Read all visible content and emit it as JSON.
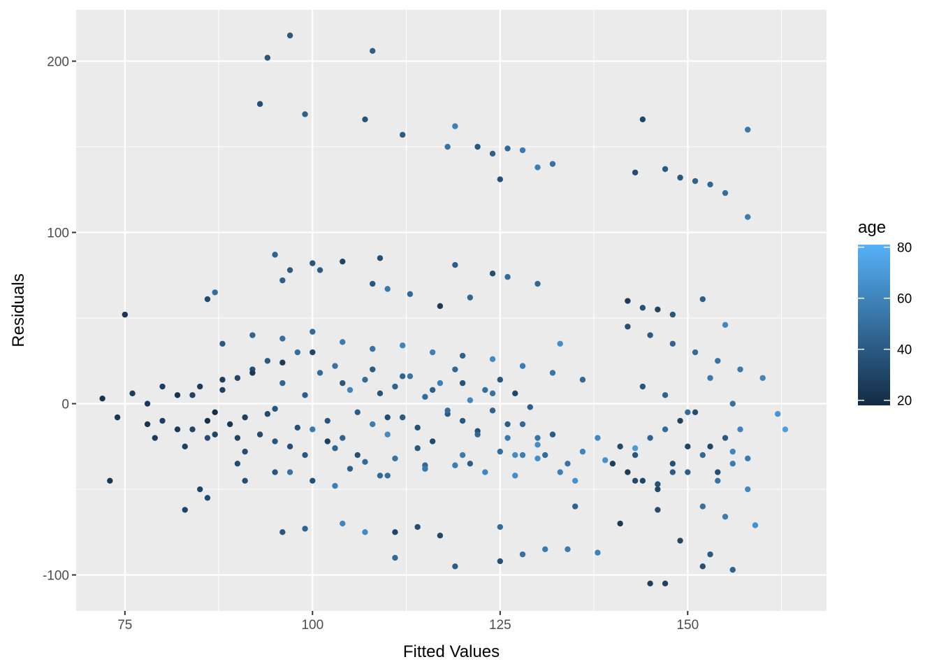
{
  "chart_data": {
    "type": "scatter",
    "title": "",
    "xlabel": "Fitted Values",
    "ylabel": "Residuals",
    "xlim": [
      68.5,
      168.5
    ],
    "ylim": [
      -121,
      230
    ],
    "x_ticks": [
      75,
      100,
      125,
      150
    ],
    "y_ticks": [
      -100,
      0,
      100,
      200
    ],
    "x_tick_labels": [
      "75",
      "100",
      "125",
      "150"
    ],
    "y_tick_labels": [
      "-100",
      "0",
      "100",
      "200"
    ],
    "grid": true,
    "panel_background": "#EBEBEB",
    "legend": {
      "title": "age",
      "placement": "right",
      "range": [
        18,
        81
      ],
      "ticks": [
        20,
        40,
        60,
        80
      ],
      "tick_labels": [
        "20",
        "40",
        "60",
        "80"
      ],
      "color_low": "#132B43",
      "color_high": "#56B1F7"
    },
    "series": [
      {
        "name": "",
        "x": [
          97,
          94,
          108,
          93,
          99,
          107,
          119,
          112,
          118,
          122,
          124,
          126,
          128,
          130,
          132,
          125,
          144,
          143,
          147,
          149,
          151,
          153,
          155,
          158,
          158,
          95,
          97,
          100,
          104,
          109,
          119,
          124,
          126,
          130,
          142,
          144,
          146,
          148,
          152,
          155,
          75,
          86,
          87,
          96,
          101,
          108,
          110,
          113,
          117,
          121,
          133,
          138,
          139,
          143,
          146,
          150,
          154,
          156,
          158,
          162,
          163,
          158,
          73,
          83,
          86,
          96,
          99,
          104,
          107,
          111,
          114,
          119,
          125,
          128,
          131,
          134,
          138,
          141,
          147,
          149,
          152,
          153,
          156,
          159,
          111,
          117,
          125,
          135,
          145,
          146,
          152,
          155,
          143,
          148,
          78,
          80,
          82,
          84,
          85,
          86,
          87,
          88,
          89,
          90,
          91,
          92,
          93,
          94,
          95,
          96,
          97,
          98,
          99,
          100,
          101,
          102,
          103,
          104,
          105,
          106,
          107,
          108,
          109,
          110,
          111,
          112,
          113,
          114,
          115,
          116,
          117,
          118,
          119,
          120,
          121,
          122,
          123,
          124,
          125,
          126,
          127,
          128,
          129,
          130,
          131,
          132,
          133,
          134,
          135,
          136,
          72,
          74,
          76,
          78,
          80,
          82,
          84,
          86,
          88,
          90,
          92,
          94,
          96,
          98,
          100,
          102,
          104,
          106,
          108,
          110,
          112,
          114,
          116,
          118,
          120,
          122,
          124,
          126,
          128,
          130,
          140,
          141,
          142,
          143,
          144,
          145,
          146,
          147,
          148,
          149,
          150,
          151,
          152,
          153,
          154,
          155,
          156,
          157,
          88,
          92,
          96,
          100,
          104,
          108,
          112,
          116,
          120,
          124,
          128,
          132,
          136,
          142,
          145,
          148,
          151,
          154,
          157,
          160,
          90,
          95,
          100,
          105,
          110,
          115,
          120,
          125,
          130,
          85,
          91,
          97,
          103,
          109,
          115,
          121,
          127,
          144,
          147,
          150,
          153,
          156,
          79,
          83,
          87,
          91,
          95,
          99,
          103,
          107,
          111,
          115,
          119,
          123,
          127
        ],
        "y": [
          215,
          202,
          206,
          175,
          169,
          166,
          162,
          157,
          150,
          150,
          146,
          149,
          148,
          138,
          140,
          131,
          166,
          135,
          137,
          132,
          130,
          128,
          123,
          160,
          109,
          87,
          78,
          82,
          83,
          85,
          81,
          76,
          74,
          70,
          60,
          56,
          55,
          52,
          61,
          46,
          52,
          61,
          65,
          72,
          78,
          70,
          67,
          64,
          57,
          62,
          35,
          -20,
          -33,
          -26,
          -47,
          -25,
          -40,
          -28,
          -32,
          -6,
          -15,
          -50,
          -45,
          -62,
          -55,
          -75,
          -73,
          -70,
          -75,
          -90,
          -72,
          -95,
          -92,
          -88,
          -85,
          -85,
          -87,
          -70,
          -105,
          -80,
          -95,
          -88,
          -97,
          -71,
          -75,
          -77,
          -72,
          -60,
          -105,
          -62,
          -60,
          -66,
          -45,
          -40,
          0,
          -10,
          5,
          -15,
          10,
          -20,
          -5,
          8,
          -12,
          15,
          -8,
          20,
          -18,
          25,
          -3,
          12,
          -25,
          30,
          5,
          -15,
          18,
          -10,
          22,
          -20,
          8,
          -5,
          14,
          -12,
          6,
          -18,
          10,
          -8,
          16,
          -14,
          4,
          -22,
          12,
          -6,
          20,
          -10,
          2,
          -16,
          8,
          -4,
          14,
          -20,
          6,
          -12,
          -2,
          -24,
          -30,
          -18,
          -40,
          -35,
          -45,
          -28,
          3,
          -8,
          6,
          -12,
          10,
          -15,
          5,
          -10,
          14,
          -20,
          18,
          -6,
          24,
          -14,
          30,
          -22,
          12,
          -30,
          20,
          -8,
          16,
          -26,
          8,
          -4,
          12,
          -18,
          6,
          -12,
          -30,
          -20,
          -35,
          -25,
          -40,
          -30,
          -45,
          -20,
          -50,
          -15,
          -35,
          -10,
          -40,
          -5,
          -30,
          -25,
          -45,
          -20,
          -35,
          -15,
          35,
          40,
          38,
          42,
          36,
          32,
          34,
          30,
          28,
          26,
          22,
          18,
          14,
          45,
          40,
          35,
          30,
          25,
          20,
          15,
          -35,
          -40,
          -45,
          -38,
          -42,
          -36,
          -30,
          -28,
          -32,
          -50,
          -45,
          -40,
          -48,
          -42,
          -38,
          -35,
          -30,
          10,
          5,
          -5,
          15,
          0,
          -20,
          -25,
          -18,
          -28,
          -22,
          -30,
          -26,
          -34,
          -32,
          -38,
          -36,
          -40,
          -42
        ],
        "age": [
          40,
          38,
          42,
          35,
          44,
          37,
          58,
          41,
          52,
          39,
          43,
          46,
          55,
          57,
          51,
          36,
          30,
          34,
          40,
          38,
          44,
          46,
          49,
          54,
          56,
          45,
          40,
          38,
          30,
          36,
          42,
          34,
          48,
          47,
          26,
          35,
          30,
          38,
          42,
          61,
          23,
          32,
          50,
          43,
          41,
          39,
          54,
          47,
          25,
          46,
          65,
          62,
          66,
          70,
          37,
          30,
          34,
          60,
          55,
          68,
          72,
          62,
          24,
          30,
          33,
          38,
          44,
          60,
          62,
          47,
          34,
          41,
          36,
          51,
          56,
          55,
          59,
          25,
          29,
          31,
          35,
          40,
          45,
          66,
          30,
          32,
          48,
          44,
          28,
          34,
          50,
          56,
          33,
          41,
          25,
          28,
          22,
          30,
          26,
          34,
          20,
          29,
          24,
          31,
          27,
          36,
          33,
          40,
          38,
          45,
          35,
          50,
          42,
          55,
          47,
          38,
          52,
          44,
          60,
          41,
          48,
          56,
          37,
          63,
          44,
          40,
          52,
          36,
          48,
          32,
          58,
          41,
          46,
          39,
          62,
          35,
          50,
          44,
          38,
          55,
          30,
          47,
          42,
          64,
          49,
          40,
          58,
          52,
          66,
          60,
          22,
          24,
          26,
          23,
          27,
          25,
          29,
          21,
          28,
          30,
          24,
          33,
          26,
          35,
          31,
          28,
          38,
          36,
          41,
          34,
          45,
          39,
          43,
          48,
          37,
          46,
          51,
          42,
          57,
          53,
          28,
          33,
          26,
          38,
          30,
          44,
          32,
          48,
          36,
          29,
          42,
          34,
          46,
          31,
          52,
          40,
          56,
          60,
          40,
          45,
          50,
          48,
          55,
          52,
          60,
          58,
          44,
          62,
          56,
          53,
          47,
          35,
          40,
          45,
          48,
          52,
          55,
          60,
          33,
          38,
          36,
          43,
          50,
          46,
          55,
          49,
          65,
          30,
          35,
          52,
          58,
          47,
          60,
          42,
          63,
          38,
          44,
          49,
          55,
          51,
          26,
          29,
          31,
          35,
          38,
          40,
          45,
          48,
          52,
          54,
          57,
          61,
          64
        ]
      }
    ]
  }
}
